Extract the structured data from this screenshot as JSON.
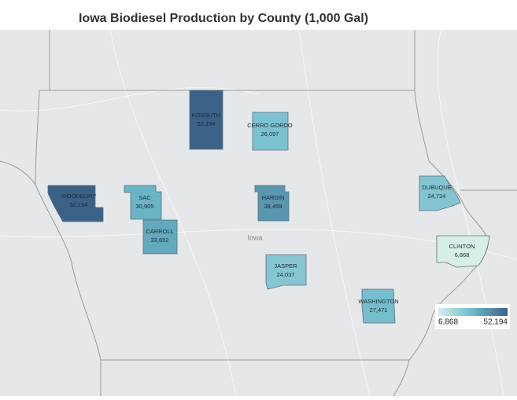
{
  "title": "Iowa Biodiesel Production by County  (1,000 Gal)",
  "map_label": "Iowa",
  "legend": {
    "min": {
      "value": 6868,
      "label": "6,868"
    },
    "max": {
      "value": 52194,
      "label": "52,194"
    },
    "colors": [
      "#d6efe9",
      "#6cb9ca",
      "#3c6187"
    ]
  },
  "counties": [
    {
      "name": "KOSSUTH",
      "value": 52194,
      "value_label": "52,194"
    },
    {
      "name": "CERRO GORDO",
      "value": 26097,
      "value_label": "26,097"
    },
    {
      "name": "WOODBURY",
      "value": 52194,
      "value_label": "52,194"
    },
    {
      "name": "SAC",
      "value": 30905,
      "value_label": "30,905"
    },
    {
      "name": "HARDIN",
      "value": 38459,
      "value_label": "38,459"
    },
    {
      "name": "DUBUQUE",
      "value": 24724,
      "value_label": "24,724"
    },
    {
      "name": "CARROLL",
      "value": 33652,
      "value_label": "33,652"
    },
    {
      "name": "CLINTON",
      "value": 6868,
      "value_label": "6,868"
    },
    {
      "name": "JASPER",
      "value": 24037,
      "value_label": "24,037"
    },
    {
      "name": "WASHINGTON",
      "value": 27471,
      "value_label": "27,471"
    }
  ]
}
